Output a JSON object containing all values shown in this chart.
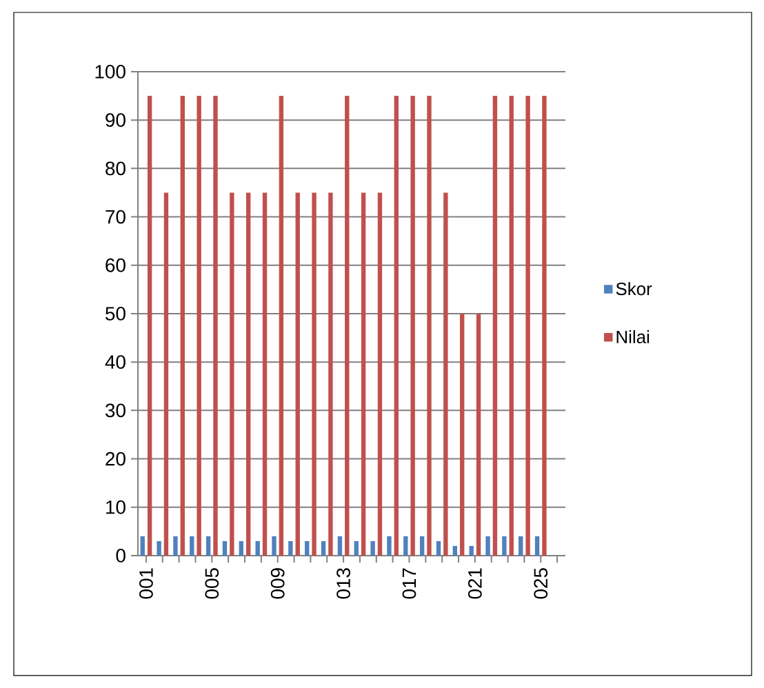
{
  "chart_data": {
    "type": "bar",
    "categories": [
      "001",
      null,
      null,
      null,
      "005",
      null,
      null,
      null,
      "009",
      null,
      null,
      null,
      "013",
      null,
      null,
      null,
      "017",
      null,
      null,
      null,
      "021",
      null,
      null,
      null,
      "025",
      null
    ],
    "series": [
      {
        "name": "Skor",
        "color": "#4f81bd",
        "values": [
          4,
          3,
          4,
          4,
          4,
          3,
          3,
          3,
          4,
          3,
          3,
          3,
          4,
          3,
          3,
          4,
          4,
          4,
          3,
          2,
          2,
          4,
          4,
          4,
          4,
          null
        ]
      },
      {
        "name": "Nilai",
        "color": "#c0504d",
        "values": [
          95,
          75,
          95,
          95,
          95,
          75,
          75,
          75,
          95,
          75,
          75,
          75,
          95,
          75,
          75,
          95,
          95,
          95,
          75,
          50,
          50,
          95,
          95,
          95,
          95,
          null
        ]
      }
    ],
    "ylim": [
      0,
      100
    ],
    "yticks": [
      0,
      10,
      20,
      30,
      40,
      50,
      60,
      70,
      80,
      90,
      100
    ],
    "grid": "y",
    "legend": "right"
  }
}
